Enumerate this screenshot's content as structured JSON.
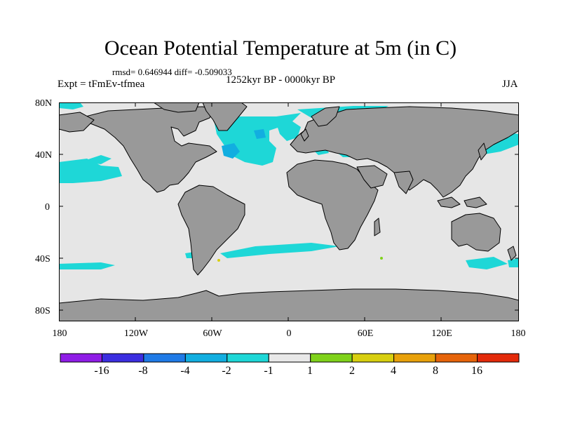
{
  "title": "Ocean Potential Temperature at 5m (in C)",
  "stats": "rmsd= 0.646944  diff= -0.509033",
  "period": "1252kyr BP - 0000kyr BP",
  "experiment": "Expt = tFmEv-tfmea",
  "season": "JJA",
  "lat_labels": [
    "80N",
    "40N",
    "0",
    "40S",
    "80S"
  ],
  "lon_labels": [
    "180",
    "120W",
    "60W",
    "0",
    "60E",
    "120E",
    "180"
  ],
  "legend": {
    "labels": [
      "-16",
      "-8",
      "-4",
      "-2",
      "-1",
      "1",
      "2",
      "4",
      "8",
      "16"
    ],
    "colors": [
      "#8f1de6",
      "#3b2ee0",
      "#1f7ae6",
      "#12aee0",
      "#1ed7d7",
      "#e8e8e8",
      "#7fd21b",
      "#d8cf10",
      "#e8a10b",
      "#e6640a",
      "#e32a0a"
    ]
  },
  "colors": {
    "ocean": "#e6e6e6",
    "land": "#999999",
    "cool": "#1ed7d7",
    "coolDeep": "#12aee0"
  }
}
